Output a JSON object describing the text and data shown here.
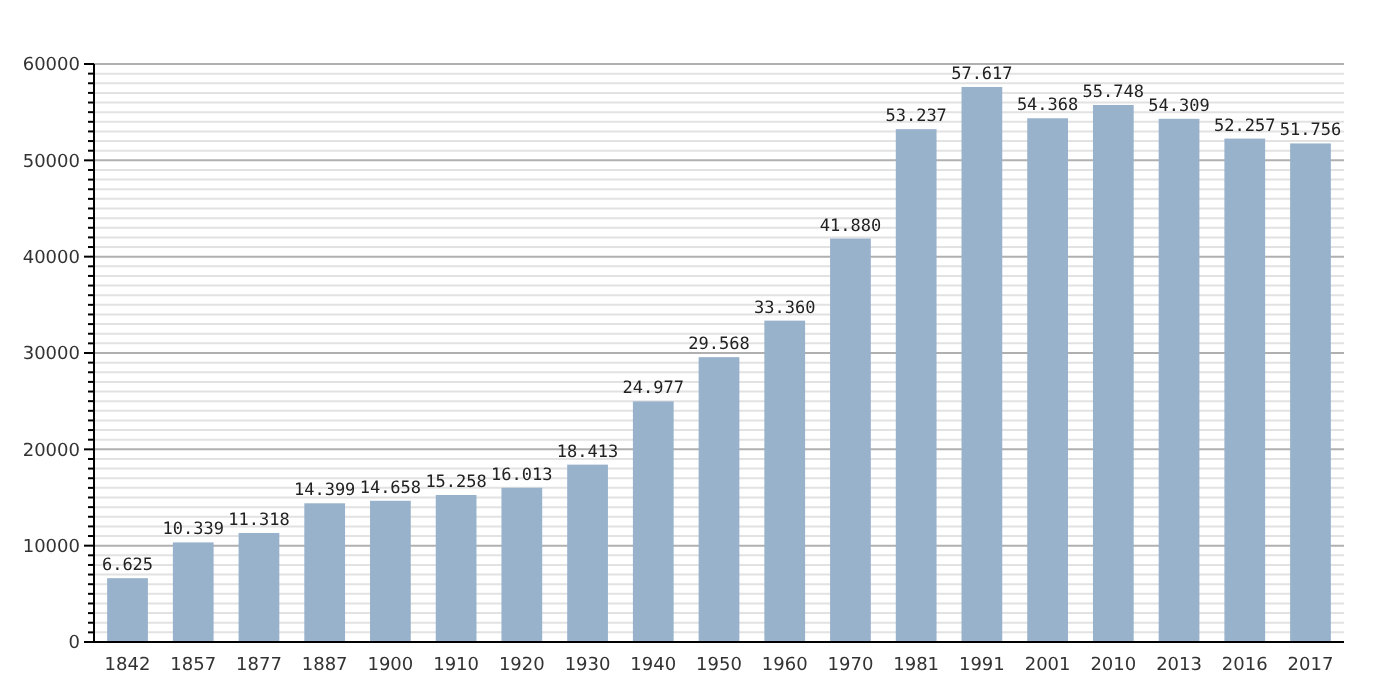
{
  "chart_data": {
    "type": "bar",
    "categories": [
      "1842",
      "1857",
      "1877",
      "1887",
      "1900",
      "1910",
      "1920",
      "1930",
      "1940",
      "1950",
      "1960",
      "1970",
      "1981",
      "1991",
      "2001",
      "2010",
      "2013",
      "2016",
      "2017"
    ],
    "values": [
      6625,
      10339,
      11318,
      14399,
      14658,
      15258,
      16013,
      18413,
      24977,
      29568,
      33360,
      41880,
      53237,
      57617,
      54368,
      55748,
      54309,
      52257,
      51756
    ],
    "value_labels": [
      "6.625",
      "10.339",
      "11.318",
      "14.399",
      "14.658",
      "15.258",
      "16.013",
      "18.413",
      "24.977",
      "29.568",
      "33.360",
      "41.880",
      "53.237",
      "57.617",
      "54.368",
      "55.748",
      "54.309",
      "52.257",
      "51.756"
    ],
    "color": "#98b2cc",
    "ylim": [
      0,
      60000
    ],
    "yticks": [
      0,
      {
        "value": 1000,
        "label": null
      },
      {
        "value": 2000,
        "label": null
      },
      {
        "value": 3000,
        "label": null
      },
      {
        "value": 4000,
        "label": null
      },
      {
        "value": 5000,
        "label": null
      },
      {
        "value": 6000,
        "label": null
      },
      {
        "value": 7000,
        "label": null
      },
      {
        "value": 8000,
        "label": null
      },
      {
        "value": 9000,
        "label": null
      },
      10000,
      {
        "value": 11000,
        "label": null
      },
      {
        "value": 12000,
        "label": null
      },
      {
        "value": 13000,
        "label": null
      },
      {
        "value": 14000,
        "label": null
      },
      {
        "value": 15000,
        "label": null
      },
      {
        "value": 16000,
        "label": null
      },
      {
        "value": 17000,
        "label": null
      },
      {
        "value": 18000,
        "label": null
      },
      {
        "value": 19000,
        "label": null
      },
      20000,
      {
        "value": 21000,
        "label": null
      },
      {
        "value": 22000,
        "label": null
      },
      {
        "value": 23000,
        "label": null
      },
      {
        "value": 24000,
        "label": null
      },
      {
        "value": 25000,
        "label": null
      },
      {
        "value": 26000,
        "label": null
      },
      {
        "value": 27000,
        "label": null
      },
      {
        "value": 28000,
        "label": null
      },
      {
        "value": 29000,
        "label": null
      },
      30000,
      {
        "value": 31000,
        "label": null
      },
      {
        "value": 32000,
        "label": null
      },
      {
        "value": 33000,
        "label": null
      },
      {
        "value": 34000,
        "label": null
      },
      {
        "value": 35000,
        "label": null
      },
      {
        "value": 36000,
        "label": null
      },
      {
        "value": 37000,
        "label": null
      },
      {
        "value": 38000,
        "label": null
      },
      {
        "value": 39000,
        "label": null
      },
      40000,
      {
        "value": 41000,
        "label": null
      },
      {
        "value": 42000,
        "label": null
      },
      {
        "value": 43000,
        "label": null
      },
      {
        "value": 44000,
        "label": null
      },
      {
        "value": 45000,
        "label": null
      },
      {
        "value": 46000,
        "label": null
      },
      {
        "value": 47000,
        "label": null
      },
      {
        "value": 48000,
        "label": null
      },
      {
        "value": 49000,
        "label": null
      },
      50000,
      {
        "value": 51000,
        "label": null
      },
      {
        "value": 52000,
        "label": null
      },
      {
        "value": 53000,
        "label": null
      },
      {
        "value": 54000,
        "label": null
      },
      {
        "value": 55000,
        "label": null
      },
      {
        "value": 56000,
        "label": null
      },
      {
        "value": 57000,
        "label": null
      },
      {
        "value": 58000,
        "label": null
      },
      {
        "value": 59000,
        "label": null
      },
      60000
    ],
    "grid": true
  }
}
